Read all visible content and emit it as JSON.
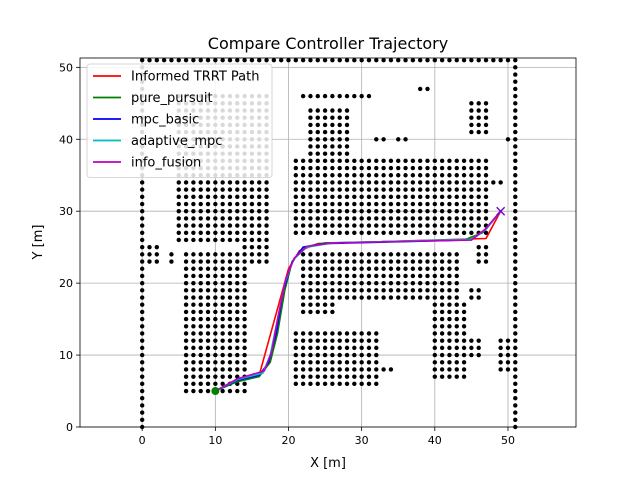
{
  "chart_data": {
    "type": "line",
    "title": "Compare Controller Trajectory",
    "xlabel": "X [m]",
    "ylabel": "Y [m]",
    "xlim": [
      -8.5,
      59.3
    ],
    "ylim": [
      0,
      51.3
    ],
    "grid": true,
    "legend_position": "upper-left",
    "x_ticks": [
      0,
      10,
      20,
      30,
      40,
      50
    ],
    "y_ticks": [
      0,
      10,
      20,
      30,
      40,
      50
    ],
    "series": [
      {
        "name": "Informed TRRT Path",
        "color": "#ff0000",
        "points": [
          [
            10,
            5
          ],
          [
            12,
            6
          ],
          [
            16,
            7.2
          ],
          [
            20,
            22
          ],
          [
            21.5,
            24.5
          ],
          [
            24,
            25.5
          ],
          [
            40,
            26
          ],
          [
            47,
            26.2
          ],
          [
            49,
            30
          ]
        ]
      },
      {
        "name": "pure_pursuit",
        "color": "#008000",
        "points": [
          [
            10,
            5
          ],
          [
            13,
            6.3
          ],
          [
            16,
            7
          ],
          [
            17.5,
            9
          ],
          [
            18.5,
            13
          ],
          [
            19.5,
            19
          ],
          [
            20.5,
            23
          ],
          [
            22,
            25
          ],
          [
            25,
            25.6
          ],
          [
            44,
            26
          ],
          [
            46.5,
            27
          ],
          [
            49,
            30
          ]
        ]
      },
      {
        "name": "mpc_basic",
        "color": "#0000ff",
        "points": [
          [
            10,
            5
          ],
          [
            13,
            6.5
          ],
          [
            16,
            7.2
          ],
          [
            17.3,
            9
          ],
          [
            18.3,
            13
          ],
          [
            19.3,
            19
          ],
          [
            20.5,
            23
          ],
          [
            22,
            25
          ],
          [
            25,
            25.5
          ],
          [
            45,
            26
          ],
          [
            47,
            27.5
          ],
          [
            49,
            30
          ]
        ]
      },
      {
        "name": "adaptive_mpc",
        "color": "#00bfbf",
        "points": [
          [
            10,
            5
          ],
          [
            13,
            6.6
          ],
          [
            16.5,
            7.5
          ],
          [
            17.5,
            10
          ],
          [
            18.5,
            15
          ],
          [
            19.5,
            20
          ],
          [
            20.7,
            23.3
          ],
          [
            22.5,
            25
          ],
          [
            26,
            25.6
          ],
          [
            45,
            26.1
          ],
          [
            47,
            27.5
          ],
          [
            49,
            30
          ]
        ]
      },
      {
        "name": "info_fusion",
        "color": "#bf00bf",
        "points": [
          [
            10,
            5
          ],
          [
            13,
            6.7
          ],
          [
            16.7,
            7.8
          ],
          [
            17.7,
            10.5
          ],
          [
            18.6,
            15.5
          ],
          [
            19.6,
            20.5
          ],
          [
            20.8,
            23.5
          ],
          [
            22.5,
            25.1
          ],
          [
            26,
            25.6
          ],
          [
            45,
            26
          ],
          [
            47,
            27.6
          ],
          [
            49,
            30
          ]
        ]
      }
    ],
    "start": {
      "x": 10,
      "y": 5,
      "color": "#008000"
    },
    "goal": {
      "x": 49,
      "y": 30,
      "color": "#7700cc"
    },
    "obstacle_color": "#000000",
    "obstacle_blocks": [
      {
        "x0": 5,
        "x1": 17,
        "y0": 26,
        "y1": 46
      },
      {
        "x0": 22,
        "x1": 31,
        "y0": 46,
        "y1": 46
      },
      {
        "x0": 23,
        "x1": 28,
        "y0": 38,
        "y1": 44
      },
      {
        "x0": 32,
        "x1": 33,
        "y0": 40,
        "y1": 40
      },
      {
        "x0": 35,
        "x1": 36,
        "y0": 40,
        "y1": 40
      },
      {
        "x0": 45,
        "x1": 47,
        "y0": 41,
        "y1": 45
      },
      {
        "x0": 50,
        "x1": 50,
        "y0": 40,
        "y1": 40
      },
      {
        "x0": 38,
        "x1": 39,
        "y0": 47,
        "y1": 47
      },
      {
        "x0": 21,
        "x1": 47,
        "y0": 27,
        "y1": 37
      },
      {
        "x0": 48,
        "x1": 49,
        "y0": 34,
        "y1": 34
      },
      {
        "x0": 17,
        "x1": 17,
        "y0": 28,
        "y1": 28
      },
      {
        "x0": 14,
        "x1": 17,
        "y0": 23,
        "y1": 25
      },
      {
        "x0": 6,
        "x1": 14,
        "y0": 5,
        "y1": 24
      },
      {
        "x0": 22,
        "x1": 43,
        "y0": 18,
        "y1": 24
      },
      {
        "x0": 22,
        "x1": 26,
        "y0": 16,
        "y1": 17
      },
      {
        "x0": 40,
        "x1": 44,
        "y0": 7,
        "y1": 17
      },
      {
        "x0": 21,
        "x1": 32,
        "y0": 6,
        "y1": 13
      },
      {
        "x0": 33,
        "x1": 34,
        "y0": 8,
        "y1": 8
      },
      {
        "x0": 45,
        "x1": 46,
        "y0": 10,
        "y1": 12
      },
      {
        "x0": 45,
        "x1": 46,
        "y0": 18,
        "y1": 19
      },
      {
        "x0": 49,
        "x1": 50,
        "y0": 8,
        "y1": 12
      },
      {
        "x0": 46,
        "x1": 47,
        "y0": 23,
        "y1": 25
      },
      {
        "x0": 0,
        "x1": 2,
        "y0": 23,
        "y1": 25
      },
      {
        "x0": 4,
        "x1": 4,
        "y0": 23,
        "y1": 24
      }
    ],
    "boundary": {
      "x0": 0,
      "x1": 51,
      "y0": 0,
      "y1": 51
    }
  }
}
